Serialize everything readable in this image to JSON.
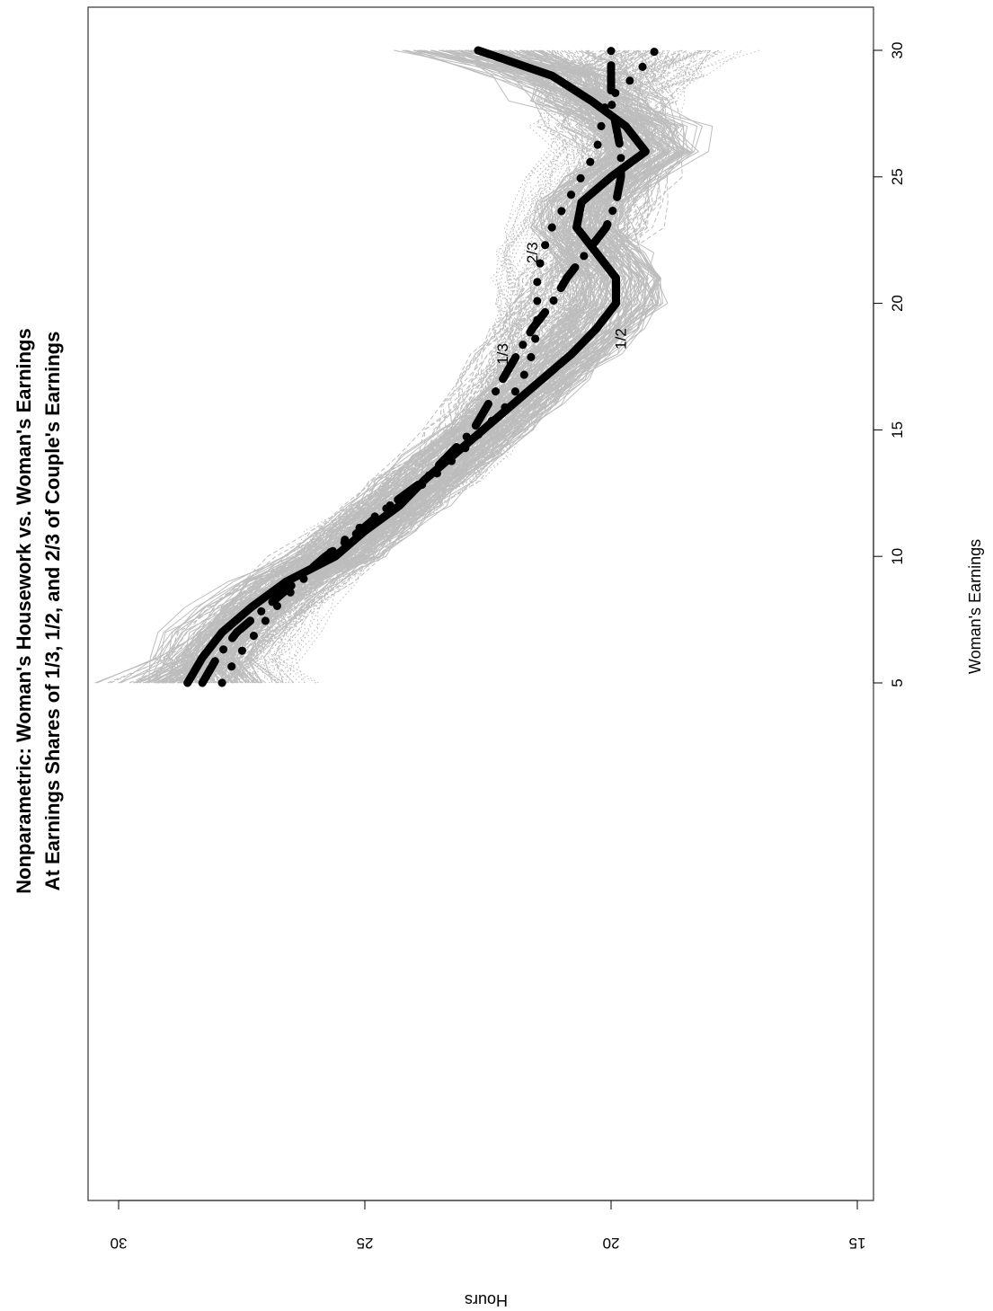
{
  "chart_data": {
    "type": "line",
    "orientation": "rotated-90-clockwise",
    "title_line1": "Nonparametric: Woman's Housework vs. Woman's Earnings",
    "title_line2": "At Earnings Shares of 1/3, 1/2, and 2/3 of Couple's Earnings",
    "xlabel": "Woman's Earnings",
    "ylabel": "Hours",
    "xlim": [
      4,
      31
    ],
    "ylim": [
      15,
      30
    ],
    "x_ticks": [
      5,
      10,
      15,
      20,
      25,
      30
    ],
    "y_ticks": [
      15,
      20,
      25,
      30
    ],
    "grid": false,
    "series": [
      {
        "name": "1/2",
        "style": "solid",
        "color": "#000000",
        "x": [
          5,
          6,
          7,
          8,
          9,
          10,
          11,
          12,
          13,
          14,
          15,
          16,
          17,
          18,
          19,
          20,
          21,
          22,
          23,
          24,
          25,
          26,
          27,
          28,
          29,
          30
        ],
        "y": [
          28.6,
          28.3,
          27.9,
          27.3,
          26.6,
          25.6,
          25.0,
          24.3,
          23.8,
          23.2,
          22.6,
          22.0,
          21.4,
          20.8,
          20.3,
          19.9,
          19.9,
          20.3,
          20.7,
          20.6,
          20.0,
          19.3,
          19.7,
          20.4,
          21.2,
          22.7
        ]
      },
      {
        "name": "1/3",
        "style": "dashdot",
        "color": "#000000",
        "x": [
          5,
          6,
          7,
          8,
          9,
          10,
          11,
          12,
          13,
          14,
          15,
          16,
          17,
          18,
          19,
          20,
          21,
          22,
          23,
          24,
          25,
          26,
          27,
          28,
          29,
          30
        ],
        "y": [
          28.3,
          28.0,
          27.6,
          27.0,
          26.4,
          25.8,
          25.1,
          24.5,
          23.8,
          23.3,
          22.8,
          22.5,
          22.2,
          21.9,
          21.6,
          21.2,
          20.9,
          20.5,
          20.1,
          19.9,
          19.8,
          19.8,
          19.9,
          20.0,
          20.0,
          20.0
        ]
      },
      {
        "name": "2/3",
        "style": "dotted",
        "color": "#000000",
        "x": [
          5,
          6,
          7,
          8,
          9,
          10,
          11,
          12,
          13,
          14,
          15,
          16,
          17,
          18,
          19,
          20,
          21,
          22,
          23,
          24,
          25,
          26,
          27,
          28,
          29,
          30
        ],
        "y": [
          27.9,
          27.6,
          27.2,
          26.8,
          26.3,
          25.8,
          25.2,
          24.5,
          23.7,
          23.1,
          22.6,
          22.1,
          21.8,
          21.6,
          21.5,
          21.5,
          21.5,
          21.4,
          21.2,
          20.9,
          20.6,
          20.3,
          20.2,
          20.1,
          19.5,
          19.1
        ]
      }
    ],
    "curve_labels": [
      {
        "text": "1/3",
        "x": 18,
        "y": 22.1
      },
      {
        "text": "1/2",
        "x": 18.6,
        "y": 19.7
      },
      {
        "text": "2/3",
        "x": 22,
        "y": 21.5
      }
    ],
    "background_color": "#bdbdbd"
  }
}
